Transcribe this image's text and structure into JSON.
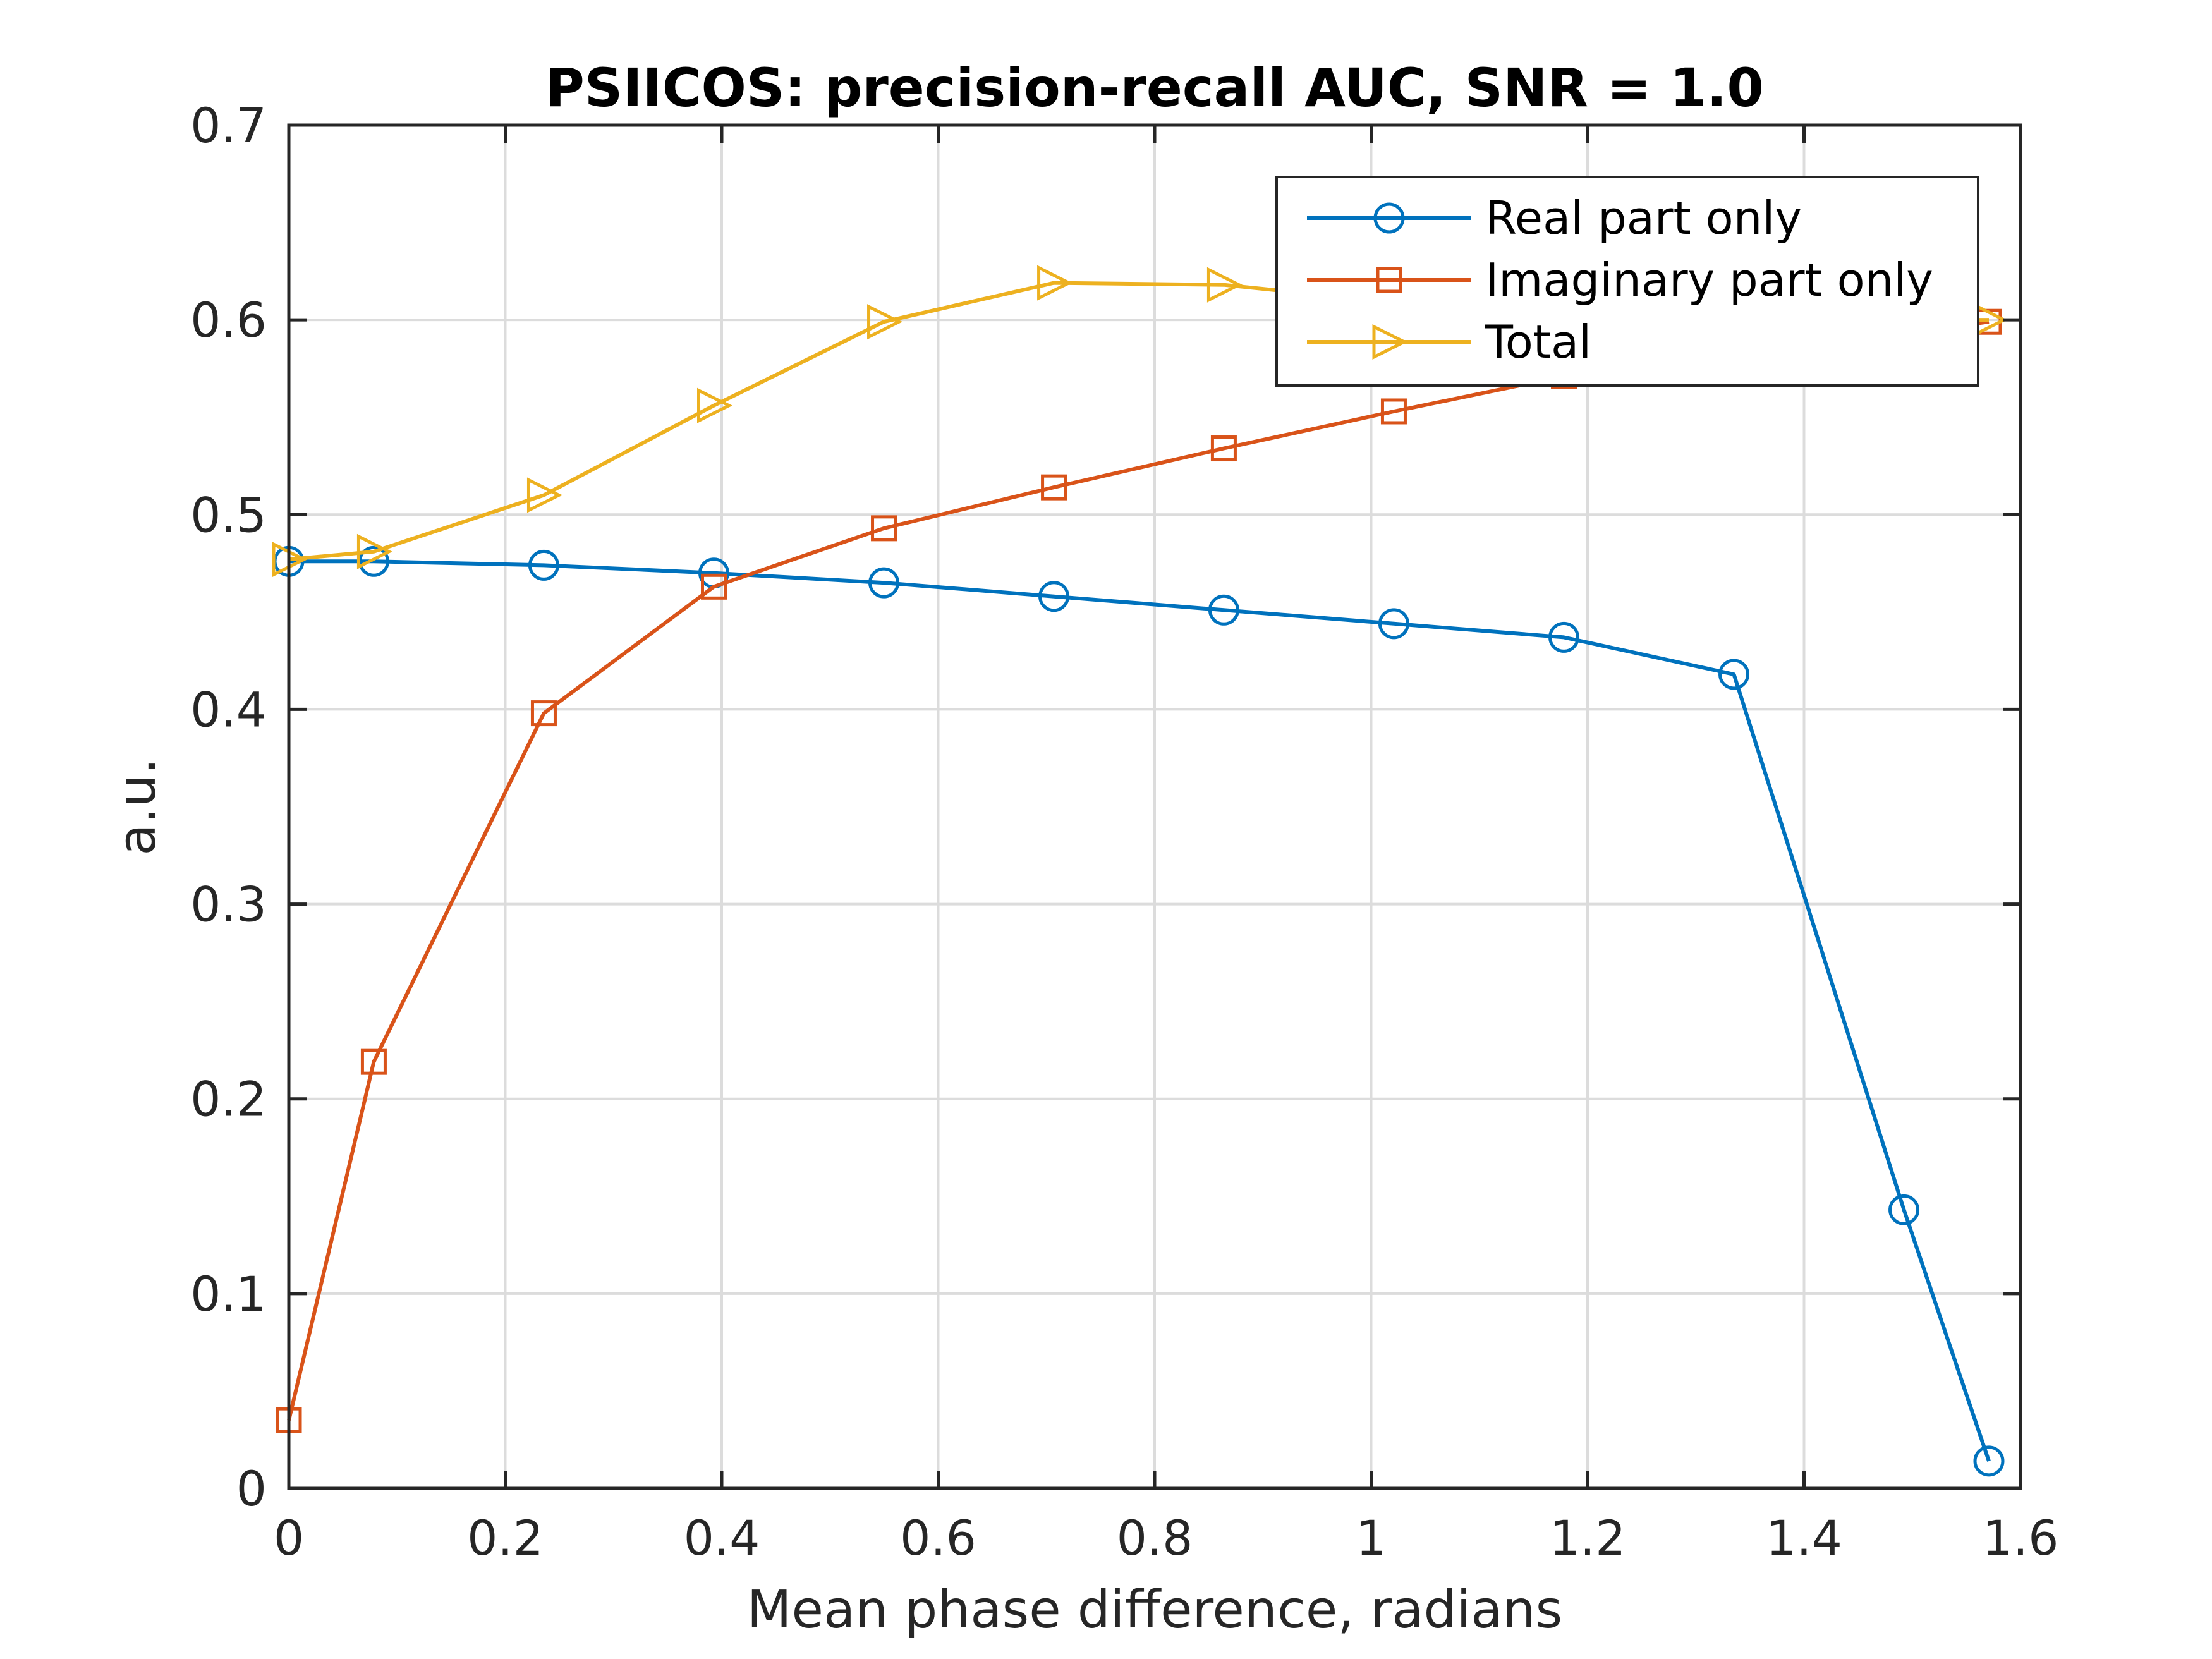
{
  "chart_data": {
    "type": "line",
    "title": "PSIICOS: precision-recall AUC, SNR  = 1.0",
    "xlabel": "Mean phase difference, radians",
    "ylabel": "a.u.",
    "xlim": [
      0,
      1.6
    ],
    "ylim": [
      0,
      0.7
    ],
    "xticks": [
      0,
      0.2,
      0.4,
      0.6,
      0.8,
      1,
      1.2,
      1.4,
      1.6
    ],
    "xtick_labels": [
      "0",
      "0.2",
      "0.4",
      "0.6",
      "0.8",
      "1",
      "1.2",
      "1.4",
      "1.6"
    ],
    "yticks": [
      0,
      0.1,
      0.2,
      0.3,
      0.4,
      0.5,
      0.6,
      0.7
    ],
    "ytick_labels": [
      "0",
      "0.1",
      "0.2",
      "0.3",
      "0.4",
      "0.5",
      "0.6",
      "0.7"
    ],
    "grid": true,
    "legend_position": "top-right",
    "x": [
      0,
      0.0785,
      0.2356,
      0.3927,
      0.5498,
      0.7069,
      0.8639,
      1.021,
      1.1781,
      1.3352,
      1.4923,
      1.5708
    ],
    "series": [
      {
        "name": "Real part only",
        "color": "#0072bd",
        "marker": "circle",
        "values": [
          0.476,
          0.476,
          0.474,
          0.47,
          0.465,
          0.458,
          0.451,
          0.444,
          0.437,
          0.418,
          0.143,
          0.014
        ]
      },
      {
        "name": "Imaginary part only",
        "color": "#d95319",
        "marker": "square",
        "values": [
          0.035,
          0.219,
          0.398,
          0.463,
          0.493,
          0.514,
          0.534,
          0.553,
          0.571,
          0.585,
          0.593,
          0.599
        ]
      },
      {
        "name": "Total",
        "color": "#edb120",
        "marker": "triangle-right",
        "values": [
          0.477,
          0.481,
          0.51,
          0.556,
          0.599,
          0.619,
          0.618,
          0.609,
          0.603,
          0.601,
          0.6,
          0.6
        ]
      }
    ]
  }
}
